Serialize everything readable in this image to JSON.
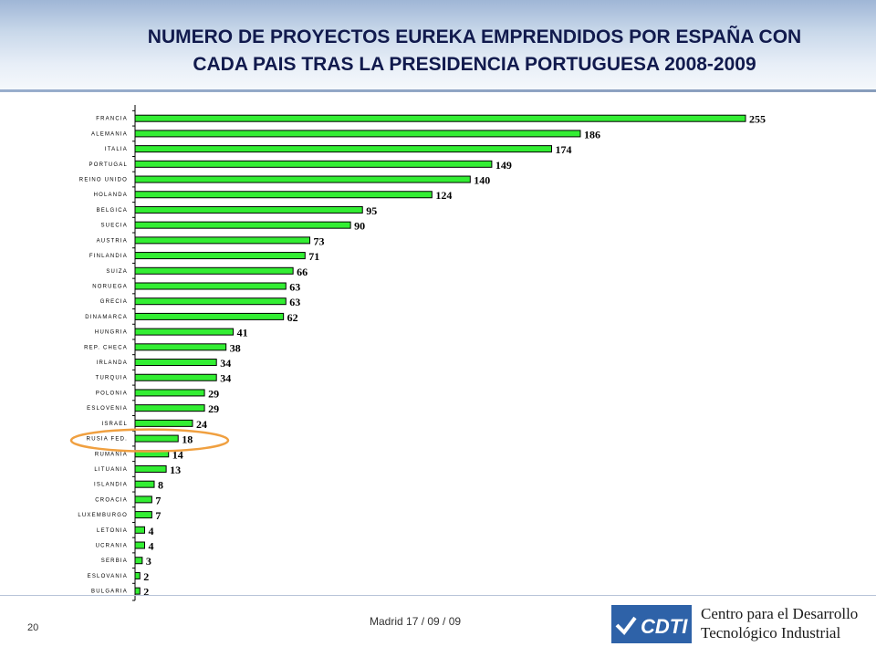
{
  "slide": {
    "title_line1": "NUMERO DE PROYECTOS EUREKA EMPRENDIDOS POR ESPAÑA CON",
    "title_line2": "CADA PAIS TRAS LA PRESIDENCIA PORTUGUESA 2008-2009",
    "page_number": "20",
    "footer_date": "Madrid  17 / 09 / 09",
    "org_line1": "Centro para el Desarrollo",
    "org_line2": "Tecnológico Industrial",
    "logo_text": "CDTI"
  },
  "colors": {
    "bar_fill": "#33ee33",
    "bar_stroke": "#000000",
    "highlight_ellipse": "#f0a040",
    "title": "#111a4d",
    "logo": "#2e62a8"
  },
  "chart_data": {
    "type": "bar",
    "orientation": "horizontal",
    "title": "",
    "xlabel": "",
    "ylabel": "",
    "xlim": [
      0,
      255
    ],
    "grid": false,
    "highlighted_category": "RUSIA FED.",
    "categories": [
      "FRANCIA",
      "ALEMANIA",
      "ITALIA",
      "PORTUGAL",
      "REINO UNIDO",
      "HOLANDA",
      "BELGICA",
      "SUECIA",
      "AUSTRIA",
      "FINLANDIA",
      "SUIZA",
      "NORUEGA",
      "GRECIA",
      "DINAMARCA",
      "HUNGRIA",
      "REP. CHECA",
      "IRLANDA",
      "TURQUIA",
      "POLONIA",
      "ESLOVENIA",
      "ISRAEL",
      "RUSIA FED.",
      "RUMANIA",
      "LITUANIA",
      "ISLANDIA",
      "CROACIA",
      "LUXEMBURGO",
      "LETONIA",
      "UCRANIA",
      "SERBIA",
      "ESLOVANIA",
      "BULGARIA"
    ],
    "values": [
      255,
      186,
      174,
      149,
      140,
      124,
      95,
      90,
      73,
      71,
      66,
      63,
      63,
      62,
      41,
      38,
      34,
      34,
      29,
      29,
      24,
      18,
      14,
      13,
      8,
      7,
      7,
      4,
      4,
      3,
      2,
      2
    ]
  }
}
